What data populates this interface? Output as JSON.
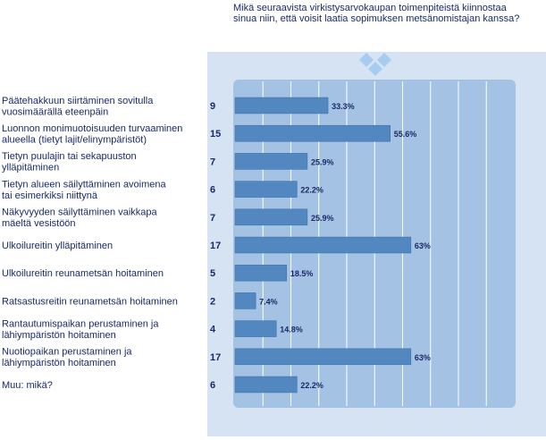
{
  "question": "Mikä seuraavista virkistysarvokaupan toimenpiteistä kiinnostaa sinua niin, että voisit laatia sopimuksen metsänomistajan kanssa?",
  "colors": {
    "bar": "#5287c0",
    "bar_edge": "#3a6ea8",
    "plot_bg": "#a4c3e4",
    "panel_bg": "#d6e3f3",
    "grid": "#ffffff",
    "text": "#1a2a66",
    "diamond": "#a6cdf0"
  },
  "chart_data": {
    "type": "bar",
    "orientation": "horizontal",
    "title": "Mikä seuraavista virkistysarvokaupan toimenpiteistä kiinnostaa sinua niin, että voisit laatia sopimuksen metsänomistajan kanssa?",
    "xlim": [
      0,
      100
    ],
    "grid": true,
    "categories": [
      "Päätehakkuun siirtäminen sovitulla vuosimäärällä eteenpäin",
      "Luonnon monimuotoisuuden turvaaminen alueella (tietyt lajit/elinympäristöt)",
      "Tietyn puulajin tai sekapuuston ylläpitäminen",
      "Tietyn alueen säilyttäminen avoimena tai esimerkiksi niittynä",
      "Näkyvyyden säilyttäminen vaikkapa mäeltä vesistöön",
      "Ulkoilureitin ylläpitäminen",
      "Ulkoilureitin reunametsän hoitaminen",
      "Ratsastusreitin reunametsän hoitaminen",
      "Rantautumispaikan perustaminen ja lähiympäristön hoitaminen",
      "Nuotiopaikan perustaminen ja lähiympäristön hoitaminen",
      "Muu: mikä?"
    ],
    "label_lines": [
      [
        "Päätehakkuun siirtäminen sovitulla",
        "vuosimäärällä eteenpäin"
      ],
      [
        "Luonnon monimuotoisuuden turvaaminen",
        "alueella (tietyt lajit/elinympäristöt)"
      ],
      [
        "Tietyn puulajin tai sekapuuston",
        "ylläpitäminen"
      ],
      [
        "Tietyn alueen säilyttäminen avoimena",
        "tai esimerkiksi niittynä"
      ],
      [
        "Näkyvyyden säilyttäminen vaikkapa",
        "mäeltä vesistöön"
      ],
      [
        "Ulkoilureitin ylläpitäminen"
      ],
      [
        "Ulkoilureitin reunametsän hoitaminen"
      ],
      [
        "Ratsastusreitin reunametsän hoitaminen"
      ],
      [
        "Rantautumispaikan perustaminen ja",
        "lähiympäristön hoitaminen"
      ],
      [
        "Nuotiopaikan perustaminen ja",
        "lähiympäristön hoitaminen"
      ],
      [
        "Muu: mikä?"
      ]
    ],
    "counts": [
      9,
      15,
      7,
      6,
      7,
      17,
      5,
      2,
      4,
      17,
      6
    ],
    "values": [
      33.3,
      55.6,
      25.9,
      22.2,
      25.9,
      63,
      18.5,
      7.4,
      14.8,
      63,
      22.2
    ],
    "value_labels": [
      "33.3%",
      "55.6%",
      "25.9%",
      "22.2%",
      "25.9%",
      "63%",
      "18.5%",
      "7.4%",
      "14.8%",
      "63%",
      "22.2%"
    ]
  }
}
